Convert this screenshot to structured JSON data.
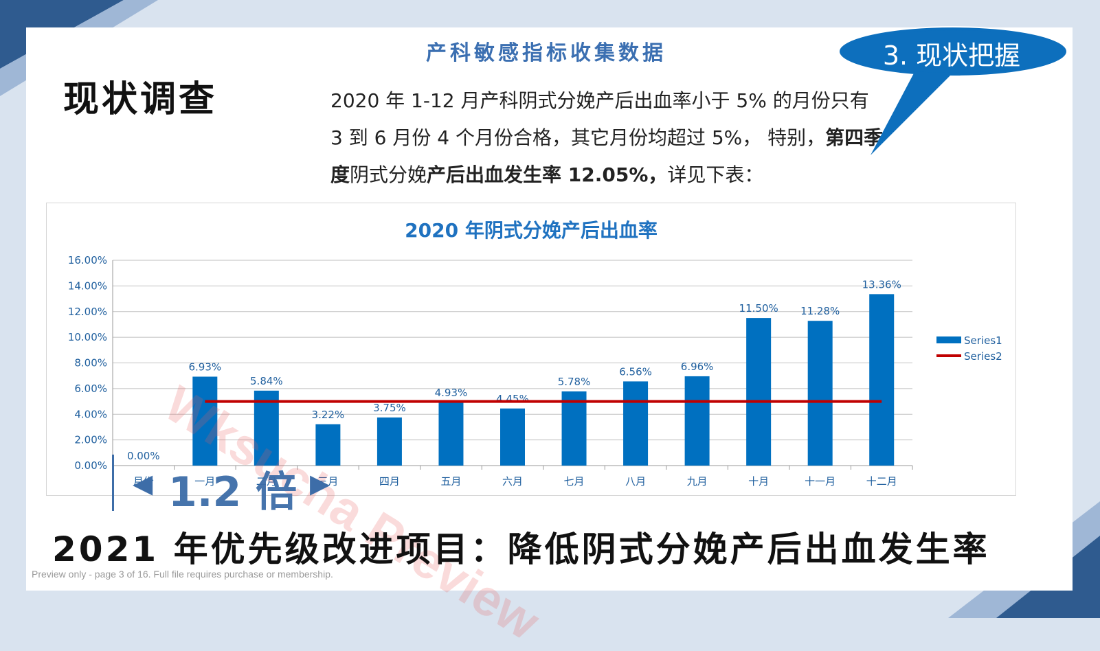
{
  "slide": {
    "subtitle": "产科敏感指标收集数据",
    "heading": "现状调查",
    "callout": "3. 现状把握",
    "description": {
      "line1": "2020 年 1-12 月产科阴式分娩产后出血率小于 5% 的月份只有",
      "line2_a": "3 到 6 月份 4 个月份合格，其它月份均超过 5%， 特别，",
      "line2_b": "第四季",
      "line3_a": "度",
      "line3_b": "阴式分娩",
      "line3_c": "产后出血发生率 12.05%，",
      "line3_d": "详见下表："
    },
    "ratio": {
      "left_arrow": "◀",
      "text": "1.2 倍",
      "right_arrow": "▶"
    },
    "bottom_title": "2021 年优先级改进项目：降低阴式分娩产后出血发生率",
    "footer_note": "Preview only - page 3 of 16. Full file requires purchase or membership.",
    "watermark": "Wksucha Preview"
  },
  "colors": {
    "bar": "#0070c0",
    "target_line": "#c00000",
    "title_blue": "#1f72c0",
    "accent_dark": "#3d6da8"
  },
  "chart_data": {
    "type": "bar",
    "title": "2020 年阴式分娩产后出血率",
    "categories": [
      "月份",
      "一月",
      "二月",
      "三月",
      "四月",
      "五月",
      "六月",
      "七月",
      "八月",
      "九月",
      "十月",
      "十一月",
      "十二月"
    ],
    "series": [
      {
        "name": "Series1",
        "type": "bar",
        "values": [
          0.0,
          6.93,
          5.84,
          3.22,
          3.75,
          4.93,
          4.45,
          5.78,
          6.56,
          6.96,
          11.5,
          11.28,
          13.36
        ],
        "labels": [
          "0.00%",
          "6.93%",
          "5.84%",
          "3.22%",
          "3.75%",
          "4.93%",
          "4.45%",
          "5.78%",
          "6.56%",
          "6.96%",
          "11.50%",
          "11.28%",
          "13.36%"
        ]
      },
      {
        "name": "Series2",
        "type": "line",
        "values": [
          null,
          5,
          5,
          5,
          5,
          5,
          5,
          5,
          5,
          5,
          5,
          5,
          5
        ]
      }
    ],
    "yticks": [
      "0.00%",
      "2.00%",
      "4.00%",
      "6.00%",
      "8.00%",
      "10.00%",
      "12.00%",
      "14.00%",
      "16.00%"
    ],
    "ylim": [
      0,
      16
    ],
    "grid": true,
    "legend_position": "right"
  }
}
